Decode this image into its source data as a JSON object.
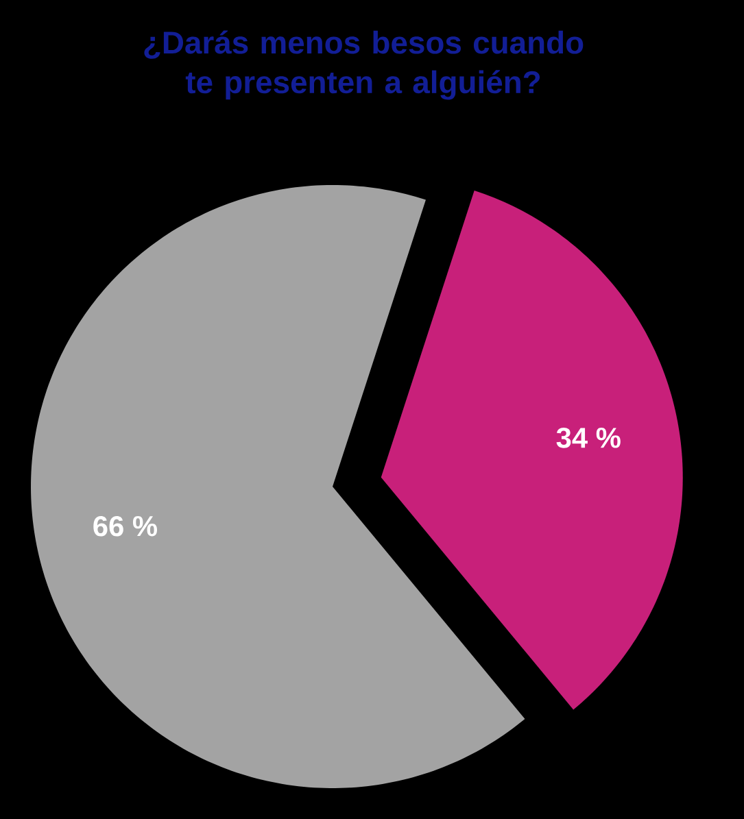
{
  "chart_data": {
    "type": "pie",
    "title": "¿Darás menos besos cuando te presenten a alguién?",
    "categories": [
      null,
      null
    ],
    "values": [
      34,
      66
    ],
    "colors": [
      "#c8207a",
      "#a3a3a3"
    ],
    "value_labels": [
      "34 %",
      "66 %"
    ]
  }
}
